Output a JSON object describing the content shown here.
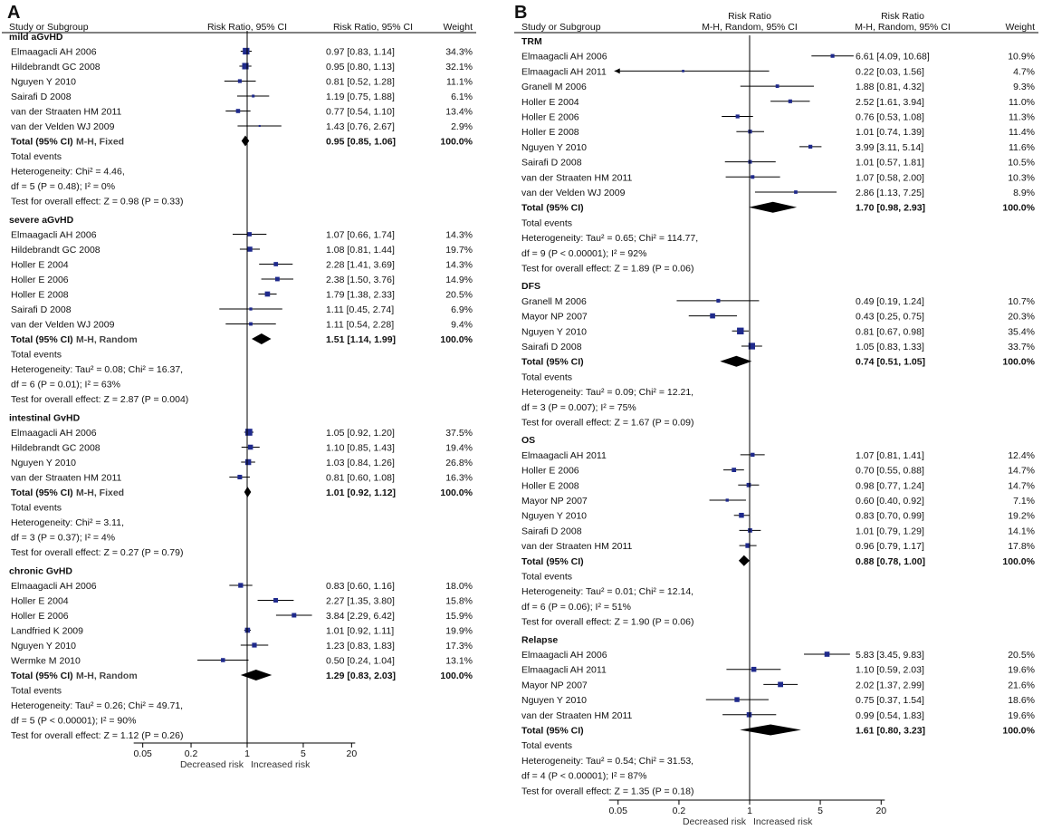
{
  "chart_data": [
    {
      "type": "forest",
      "panel": "A",
      "header": {
        "study": "Study or Subgroup",
        "plot_col": "Risk Ratio, 95% CI",
        "value_col": "Risk Ratio, 95% CI",
        "weight": "Weight"
      },
      "axis": {
        "scale": "log",
        "ticks": [
          "0.05",
          "0.2",
          "1",
          "5",
          "20"
        ],
        "xlim": [
          0.05,
          20
        ],
        "left_label": "Decreased risk",
        "right_label": "Increased risk"
      },
      "groups": [
        {
          "name": "mild aGvHD",
          "studies": [
            {
              "label": "Elmaagacli AH 2006",
              "rr": 0.97,
              "lo": 0.83,
              "hi": 1.14,
              "ci": "0.97 [0.83, 1.14]",
              "weight": "34.3%"
            },
            {
              "label": "Hildebrandt  GC 2008",
              "rr": 0.95,
              "lo": 0.8,
              "hi": 1.13,
              "ci": "0.95 [0.80, 1.13]",
              "weight": "32.1%"
            },
            {
              "label": "Nguyen Y 2010",
              "rr": 0.81,
              "lo": 0.52,
              "hi": 1.28,
              "ci": "0.81 [0.52, 1.28]",
              "weight": "11.1%"
            },
            {
              "label": "Sairafi D 2008",
              "rr": 1.19,
              "lo": 0.75,
              "hi": 1.88,
              "ci": "1.19 [0.75, 1.88]",
              "weight": "6.1%"
            },
            {
              "label": "van der Straaten HM 2011",
              "rr": 0.77,
              "lo": 0.54,
              "hi": 1.1,
              "ci": "0.77 [0.54, 1.10]",
              "weight": "13.4%"
            },
            {
              "label": "van der Velden WJ 2009",
              "rr": 1.43,
              "lo": 0.76,
              "hi": 2.67,
              "ci": "1.43 [0.76, 2.67]",
              "weight": "2.9%"
            }
          ],
          "total": {
            "label": "Total (95% CI)",
            "method": "M-H, Fixed",
            "rr": 0.95,
            "lo": 0.85,
            "hi": 1.06,
            "ci": "0.95 [0.85, 1.06]",
            "weight": "100.0%"
          },
          "notes": [
            "Total events",
            "Heterogeneity: Chi² = 4.46,",
            "df = 5 (P = 0.48); I² = 0%",
            "Test for overall effect: Z = 0.98 (P = 0.33)"
          ]
        },
        {
          "name": "severe aGvHD",
          "studies": [
            {
              "label": "Elmaagacli AH 2006",
              "rr": 1.07,
              "lo": 0.66,
              "hi": 1.74,
              "ci": "1.07 [0.66, 1.74]",
              "weight": "14.3%"
            },
            {
              "label": "Hildebrandt  GC 2008",
              "rr": 1.08,
              "lo": 0.81,
              "hi": 1.44,
              "ci": "1.08 [0.81, 1.44]",
              "weight": "19.7%"
            },
            {
              "label": "Holler E 2004",
              "rr": 2.28,
              "lo": 1.41,
              "hi": 3.69,
              "ci": "2.28 [1.41, 3.69]",
              "weight": "14.3%"
            },
            {
              "label": "Holler E 2006",
              "rr": 2.38,
              "lo": 1.5,
              "hi": 3.76,
              "ci": "2.38 [1.50, 3.76]",
              "weight": "14.9%"
            },
            {
              "label": "Holler E 2008",
              "rr": 1.79,
              "lo": 1.38,
              "hi": 2.33,
              "ci": "1.79 [1.38, 2.33]",
              "weight": "20.5%"
            },
            {
              "label": "Sairafi D 2008",
              "rr": 1.11,
              "lo": 0.45,
              "hi": 2.74,
              "ci": "1.11 [0.45, 2.74]",
              "weight": "6.9%"
            },
            {
              "label": "van der Velden WJ 2009",
              "rr": 1.11,
              "lo": 0.54,
              "hi": 2.28,
              "ci": "1.11 [0.54, 2.28]",
              "weight": "9.4%"
            }
          ],
          "total": {
            "label": "Total (95% CI)",
            "method": "M-H, Random",
            "rr": 1.51,
            "lo": 1.14,
            "hi": 1.99,
            "ci": "1.51 [1.14, 1.99]",
            "weight": "100.0%"
          },
          "notes": [
            "Total events",
            "Heterogeneity: Tau² = 0.08; Chi² = 16.37,",
            "df = 6 (P = 0.01); I² = 63%",
            "Test for overall effect: Z = 2.87 (P = 0.004)"
          ]
        },
        {
          "name": "intestinal GvHD",
          "studies": [
            {
              "label": "Elmaagacli AH 2006",
              "rr": 1.05,
              "lo": 0.92,
              "hi": 1.2,
              "ci": "1.05 [0.92, 1.20]",
              "weight": "37.5%"
            },
            {
              "label": "Hildebrandt  GC 2008",
              "rr": 1.1,
              "lo": 0.85,
              "hi": 1.43,
              "ci": "1.10 [0.85, 1.43]",
              "weight": "19.4%"
            },
            {
              "label": "Nguyen Y 2010",
              "rr": 1.03,
              "lo": 0.84,
              "hi": 1.26,
              "ci": "1.03 [0.84, 1.26]",
              "weight": "26.8%"
            },
            {
              "label": "van der Straaten HM 2011",
              "rr": 0.81,
              "lo": 0.6,
              "hi": 1.08,
              "ci": "0.81 [0.60, 1.08]",
              "weight": "16.3%"
            }
          ],
          "total": {
            "label": "Total (95% CI)",
            "method": "M-H, Fixed",
            "rr": 1.01,
            "lo": 0.92,
            "hi": 1.12,
            "ci": "1.01 [0.92, 1.12]",
            "weight": "100.0%"
          },
          "notes": [
            "Total events",
            "Heterogeneity: Chi² = 3.11,",
            "df = 3 (P = 0.37); I² = 4%",
            "Test for overall effect: Z = 0.27 (P = 0.79)"
          ]
        },
        {
          "name": "chronic GvHD",
          "studies": [
            {
              "label": "Elmaagacli AH 2006",
              "rr": 0.83,
              "lo": 0.6,
              "hi": 1.16,
              "ci": "0.83 [0.60, 1.16]",
              "weight": "18.0%"
            },
            {
              "label": "Holler E 2004",
              "rr": 2.27,
              "lo": 1.35,
              "hi": 3.8,
              "ci": "2.27 [1.35, 3.80]",
              "weight": "15.8%"
            },
            {
              "label": "Holler E 2006",
              "rr": 3.84,
              "lo": 2.29,
              "hi": 6.42,
              "ci": "3.84 [2.29, 6.42]",
              "weight": "15.9%"
            },
            {
              "label": "Landfried K 2009",
              "rr": 1.01,
              "lo": 0.92,
              "hi": 1.11,
              "ci": "1.01 [0.92, 1.11]",
              "weight": "19.9%"
            },
            {
              "label": "Nguyen Y 2010",
              "rr": 1.23,
              "lo": 0.83,
              "hi": 1.83,
              "ci": "1.23 [0.83, 1.83]",
              "weight": "17.3%"
            },
            {
              "label": "Wermke M 2010",
              "rr": 0.5,
              "lo": 0.24,
              "hi": 1.04,
              "ci": "0.50 [0.24, 1.04]",
              "weight": "13.1%"
            }
          ],
          "total": {
            "label": "Total (95% CI)",
            "method": "M-H, Random",
            "rr": 1.29,
            "lo": 0.83,
            "hi": 2.03,
            "ci": "1.29 [0.83, 2.03]",
            "weight": "100.0%"
          },
          "notes": [
            "Total events",
            "Heterogeneity: Tau² = 0.26; Chi² = 49.71,",
            "df = 5 (P < 0.00001); I² = 90%",
            "Test for overall effect: Z = 1.12 (P = 0.26)"
          ]
        }
      ]
    },
    {
      "type": "forest",
      "panel": "B",
      "header": {
        "study": "Study or Subgroup",
        "plot_col_top": "Risk Ratio",
        "plot_col": "M-H, Random, 95% CI",
        "value_col_top": "Risk Ratio",
        "value_col": "M-H, Random, 95% CI",
        "weight": "Weight"
      },
      "axis": {
        "scale": "log",
        "ticks": [
          "0.05",
          "0.2",
          "1",
          "5",
          "20"
        ],
        "xlim": [
          0.05,
          20
        ],
        "left_label": "Decreased risk",
        "right_label": "Increased risk"
      },
      "groups": [
        {
          "name": "TRM",
          "studies": [
            {
              "label": "Elmaagacli AH 2006",
              "rr": 6.61,
              "lo": 4.09,
              "hi": 10.68,
              "ci": "6.61 [4.09, 10.68]",
              "weight": "10.9%"
            },
            {
              "label": "Elmaagacli AH 2011",
              "rr": 0.22,
              "lo": 0.03,
              "hi": 1.56,
              "ci": "0.22 [0.03, 1.56]",
              "weight": "4.7%"
            },
            {
              "label": "Granell M 2006",
              "rr": 1.88,
              "lo": 0.81,
              "hi": 4.32,
              "ci": "1.88 [0.81, 4.32]",
              "weight": "9.3%"
            },
            {
              "label": "Holler E 2004",
              "rr": 2.52,
              "lo": 1.61,
              "hi": 3.94,
              "ci": "2.52 [1.61, 3.94]",
              "weight": "11.0%"
            },
            {
              "label": "Holler E 2006",
              "rr": 0.76,
              "lo": 0.53,
              "hi": 1.08,
              "ci": "0.76 [0.53, 1.08]",
              "weight": "11.3%"
            },
            {
              "label": "Holler E 2008",
              "rr": 1.01,
              "lo": 0.74,
              "hi": 1.39,
              "ci": "1.01 [0.74, 1.39]",
              "weight": "11.4%"
            },
            {
              "label": "Nguyen Y 2010",
              "rr": 3.99,
              "lo": 3.11,
              "hi": 5.14,
              "ci": "3.99 [3.11, 5.14]",
              "weight": "11.6%"
            },
            {
              "label": "Sairafi D 2008",
              "rr": 1.01,
              "lo": 0.57,
              "hi": 1.81,
              "ci": "1.01 [0.57, 1.81]",
              "weight": "10.5%"
            },
            {
              "label": "van der Straaten HM 2011",
              "rr": 1.07,
              "lo": 0.58,
              "hi": 2.0,
              "ci": "1.07 [0.58, 2.00]",
              "weight": "10.3%"
            },
            {
              "label": "van der Velden WJ 2009",
              "rr": 2.86,
              "lo": 1.13,
              "hi": 7.25,
              "ci": "2.86 [1.13, 7.25]",
              "weight": "8.9%"
            }
          ],
          "total": {
            "label": "Total (95% CI)",
            "method": "",
            "rr": 1.7,
            "lo": 0.98,
            "hi": 2.93,
            "ci": "1.70 [0.98, 2.93]",
            "weight": "100.0%"
          },
          "notes": [
            "Total events",
            "Heterogeneity: Tau² = 0.65; Chi² = 114.77,",
            "df = 9 (P < 0.00001); I² = 92%",
            "Test for overall effect: Z = 1.89 (P = 0.06)"
          ]
        },
        {
          "name": "DFS",
          "studies": [
            {
              "label": "Granell M 2006",
              "rr": 0.49,
              "lo": 0.19,
              "hi": 1.24,
              "ci": "0.49 [0.19, 1.24]",
              "weight": "10.7%"
            },
            {
              "label": "Mayor NP 2007",
              "rr": 0.43,
              "lo": 0.25,
              "hi": 0.75,
              "ci": "0.43 [0.25, 0.75]",
              "weight": "20.3%"
            },
            {
              "label": "Nguyen Y 2010",
              "rr": 0.81,
              "lo": 0.67,
              "hi": 0.98,
              "ci": "0.81 [0.67, 0.98]",
              "weight": "35.4%"
            },
            {
              "label": "Sairafi D 2008",
              "rr": 1.05,
              "lo": 0.83,
              "hi": 1.33,
              "ci": "1.05 [0.83, 1.33]",
              "weight": "33.7%"
            }
          ],
          "total": {
            "label": "Total (95% CI)",
            "method": "",
            "rr": 0.74,
            "lo": 0.51,
            "hi": 1.05,
            "ci": "0.74 [0.51, 1.05]",
            "weight": "100.0%"
          },
          "notes": [
            "Total events",
            "Heterogeneity: Tau² = 0.09; Chi² = 12.21,",
            "df = 3 (P = 0.007); I² = 75%",
            "Test for overall effect: Z = 1.67 (P = 0.09)"
          ]
        },
        {
          "name": "OS",
          "studies": [
            {
              "label": "Elmaagacli AH 2011",
              "rr": 1.07,
              "lo": 0.81,
              "hi": 1.41,
              "ci": "1.07 [0.81, 1.41]",
              "weight": "12.4%"
            },
            {
              "label": "Holler E 2006",
              "rr": 0.7,
              "lo": 0.55,
              "hi": 0.88,
              "ci": "0.70 [0.55, 0.88]",
              "weight": "14.7%"
            },
            {
              "label": "Holler E 2008",
              "rr": 0.98,
              "lo": 0.77,
              "hi": 1.24,
              "ci": "0.98 [0.77, 1.24]",
              "weight": "14.7%"
            },
            {
              "label": "Mayor NP 2007",
              "rr": 0.6,
              "lo": 0.4,
              "hi": 0.92,
              "ci": "0.60 [0.40, 0.92]",
              "weight": "7.1%"
            },
            {
              "label": "Nguyen Y 2010",
              "rr": 0.83,
              "lo": 0.7,
              "hi": 0.99,
              "ci": "0.83 [0.70, 0.99]",
              "weight": "19.2%"
            },
            {
              "label": "Sairafi D 2008",
              "rr": 1.01,
              "lo": 0.79,
              "hi": 1.29,
              "ci": "1.01 [0.79, 1.29]",
              "weight": "14.1%"
            },
            {
              "label": "van der Straaten HM 2011",
              "rr": 0.96,
              "lo": 0.79,
              "hi": 1.17,
              "ci": "0.96 [0.79, 1.17]",
              "weight": "17.8%"
            }
          ],
          "total": {
            "label": "Total (95% CI)",
            "method": "",
            "rr": 0.88,
            "lo": 0.78,
            "hi": 1.0,
            "ci": "0.88 [0.78, 1.00]",
            "weight": "100.0%"
          },
          "notes": [
            "Total events",
            "Heterogeneity: Tau² = 0.01; Chi² = 12.14,",
            "df = 6 (P = 0.06); I² = 51%",
            "Test for overall effect: Z = 1.90 (P = 0.06)"
          ]
        },
        {
          "name": "Relapse",
          "studies": [
            {
              "label": "Elmaagacli AH 2006",
              "rr": 5.83,
              "lo": 3.45,
              "hi": 9.83,
              "ci": "5.83 [3.45, 9.83]",
              "weight": "20.5%"
            },
            {
              "label": "Elmaagacli AH 2011",
              "rr": 1.1,
              "lo": 0.59,
              "hi": 2.03,
              "ci": "1.10 [0.59, 2.03]",
              "weight": "19.6%"
            },
            {
              "label": "Mayor NP 2007",
              "rr": 2.02,
              "lo": 1.37,
              "hi": 2.99,
              "ci": "2.02 [1.37, 2.99]",
              "weight": "21.6%"
            },
            {
              "label": "Nguyen Y 2010",
              "rr": 0.75,
              "lo": 0.37,
              "hi": 1.54,
              "ci": "0.75 [0.37, 1.54]",
              "weight": "18.6%"
            },
            {
              "label": "van der Straaten HM 2011",
              "rr": 0.99,
              "lo": 0.54,
              "hi": 1.83,
              "ci": "0.99 [0.54, 1.83]",
              "weight": "19.6%"
            }
          ],
          "total": {
            "label": "Total (95% CI)",
            "method": "",
            "rr": 1.61,
            "lo": 0.8,
            "hi": 3.23,
            "ci": "1.61 [0.80, 3.23]",
            "weight": "100.0%"
          },
          "notes": [
            "Total events",
            "Heterogeneity: Tau² = 0.54; Chi² = 31.53,",
            "df = 4 (P < 0.00001); I² = 87%",
            "Test for overall effect: Z = 1.35 (P = 0.18)"
          ]
        }
      ]
    }
  ],
  "colors": {
    "marker": "#1f2a8c",
    "diamond": "#000000",
    "line": "#000000",
    "text": "#111111"
  }
}
